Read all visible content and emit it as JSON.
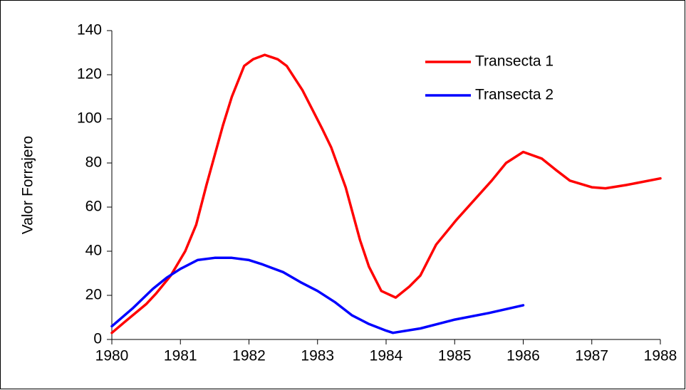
{
  "chart_data": {
    "type": "line",
    "y_label": "Valor Forrajero",
    "xlim": [
      1980,
      1988
    ],
    "xticks": [
      1980,
      1981,
      1982,
      1983,
      1984,
      1985,
      1986,
      1987,
      1988
    ],
    "ylim": [
      0,
      140
    ],
    "yticks": [
      0,
      20,
      40,
      60,
      80,
      100,
      120,
      140
    ],
    "legend": "upper right",
    "series": [
      {
        "name": "Transecta 1",
        "color": "#ff0000",
        "x": [
          1980.0,
          1980.19,
          1980.5,
          1980.65,
          1980.86,
          1981.07,
          1981.23,
          1981.38,
          1981.62,
          1981.75,
          1981.93,
          1982.06,
          1982.23,
          1982.42,
          1982.55,
          1982.78,
          1983.06,
          1983.2,
          1983.41,
          1983.62,
          1983.75,
          1983.93,
          1984.14,
          1984.34,
          1984.5,
          1984.73,
          1985.02,
          1985.28,
          1985.54,
          1985.75,
          1986.0,
          1986.27,
          1986.47,
          1986.68,
          1987.0,
          1987.2,
          1987.5,
          1988.0
        ],
        "values": [
          3,
          8,
          16,
          21,
          29,
          40,
          52,
          70,
          97,
          110,
          124,
          127,
          129,
          127,
          124,
          113,
          96,
          87,
          69,
          45,
          33,
          22,
          19,
          24,
          29,
          43,
          54,
          63,
          72,
          80,
          85,
          82,
          77,
          72,
          69,
          68.5,
          70,
          73
        ]
      },
      {
        "name": "Transecta 2",
        "color": "#0000ff",
        "x": [
          1980.0,
          1980.3,
          1980.6,
          1980.8,
          1981.0,
          1981.25,
          1981.5,
          1981.75,
          1982.0,
          1982.2,
          1982.5,
          1982.75,
          1983.0,
          1983.25,
          1983.5,
          1983.75,
          1984.0,
          1984.1,
          1984.5,
          1984.75,
          1985.0,
          1985.5,
          1986.0
        ],
        "values": [
          6,
          14,
          23,
          28,
          32,
          36,
          37,
          37,
          36,
          34,
          30.5,
          26,
          22,
          17,
          11,
          7,
          4,
          3,
          5,
          7,
          9,
          12,
          15.5
        ]
      }
    ]
  }
}
